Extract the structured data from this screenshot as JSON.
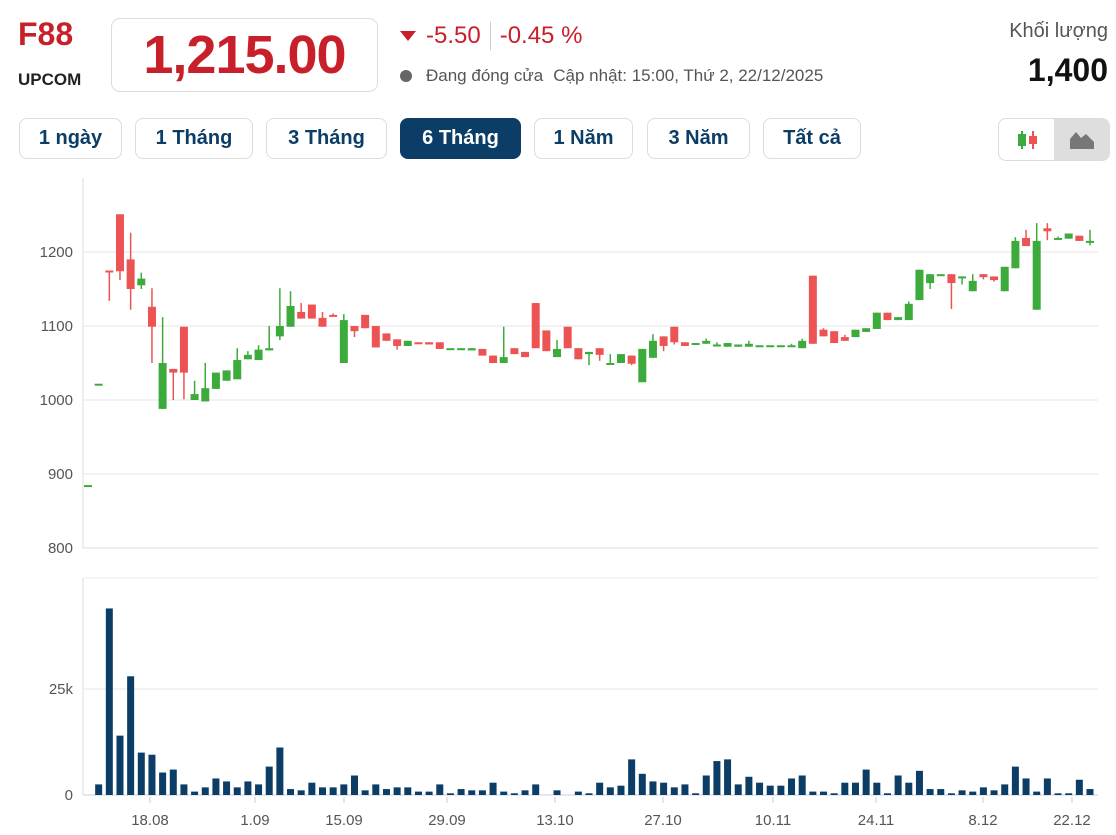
{
  "header": {
    "ticker": "F88",
    "exchange": "UPCOM",
    "price": "1,215.00",
    "change": "-5.50",
    "change_pct": "-0.45 %",
    "status": "Đang đóng cửa",
    "updated": "Cập nhật: 15:00, Thứ 2, 22/12/2025",
    "volume_label": "Khối lượng",
    "volume_value": "1,400"
  },
  "ranges": [
    {
      "label": "1 ngày",
      "active": false
    },
    {
      "label": "1 Tháng",
      "active": false
    },
    {
      "label": "3 Tháng",
      "active": false
    },
    {
      "label": "6 Tháng",
      "active": true
    },
    {
      "label": "1 Năm",
      "active": false
    },
    {
      "label": "3 Năm",
      "active": false
    },
    {
      "label": "Tất cả",
      "active": false
    }
  ],
  "chart_toggle": {
    "options": [
      "candlestick-icon",
      "area-chart-icon"
    ],
    "selected": "area-chart-icon"
  },
  "colors": {
    "up": "#3cab3c",
    "down": "#ec5454",
    "volume": "#0b3d66",
    "accent": "#0b3d66",
    "price": "#c8202a"
  },
  "chart_data": {
    "type": "candlestick",
    "price_axis": {
      "ticks": [
        "1200",
        "1100",
        "1000",
        "900",
        "800"
      ],
      "range": [
        800,
        1260
      ]
    },
    "volume_axis": {
      "ticks": [
        "25k",
        "0"
      ],
      "range": [
        0,
        47000
      ]
    },
    "x_ticks": [
      "18.08",
      "1.09",
      "15.09",
      "29.09",
      "13.10",
      "27.10",
      "10.11",
      "24.11",
      "8.12",
      "22.12"
    ],
    "grid": true,
    "ohlc": [
      [
        885,
        885,
        885,
        885
      ],
      [
        1022,
        1022,
        1022,
        1022
      ],
      [
        1175,
        1175,
        1134,
        1174
      ],
      [
        1251,
        1251,
        1162,
        1174
      ],
      [
        1190,
        1226,
        1122,
        1150
      ],
      [
        1155,
        1172,
        1150,
        1164
      ],
      [
        1126,
        1151,
        1050,
        1099
      ],
      [
        988,
        1112,
        988,
        1050
      ],
      [
        1042,
        1042,
        1000,
        1037
      ],
      [
        1099,
        1099,
        1001,
        1037
      ],
      [
        1000,
        1026,
        1000,
        1008
      ],
      [
        998,
        1050,
        998,
        1016
      ],
      [
        1015,
        1037,
        1015,
        1037
      ],
      [
        1026,
        1040,
        1026,
        1040
      ],
      [
        1028,
        1070,
        1028,
        1054
      ],
      [
        1055,
        1066,
        1055,
        1061
      ],
      [
        1054,
        1074,
        1054,
        1068
      ],
      [
        1067,
        1100,
        1067,
        1070
      ],
      [
        1086,
        1151,
        1081,
        1100
      ],
      [
        1099,
        1147,
        1099,
        1127
      ],
      [
        1119,
        1131,
        1110,
        1110
      ],
      [
        1129,
        1129,
        1110,
        1110
      ],
      [
        1111,
        1119,
        1099,
        1099
      ],
      [
        1115,
        1117,
        1113,
        1114
      ],
      [
        1050,
        1116,
        1050,
        1108
      ],
      [
        1100,
        1100,
        1085,
        1093
      ],
      [
        1115,
        1115,
        1097,
        1097
      ],
      [
        1100,
        1100,
        1071,
        1071
      ],
      [
        1090,
        1090,
        1080,
        1080
      ],
      [
        1082,
        1082,
        1068,
        1073
      ],
      [
        1073,
        1080,
        1073,
        1080
      ],
      [
        1078,
        1078,
        1077,
        1077
      ],
      [
        1078,
        1078,
        1075,
        1075
      ],
      [
        1078,
        1078,
        1069,
        1069
      ],
      [
        1070,
        1070,
        1070,
        1070
      ],
      [
        1070,
        1070,
        1068,
        1070
      ],
      [
        1067,
        1070,
        1067,
        1070
      ],
      [
        1069,
        1069,
        1060,
        1060
      ],
      [
        1060,
        1060,
        1050,
        1050
      ],
      [
        1050,
        1099,
        1050,
        1058
      ],
      [
        1070,
        1070,
        1062,
        1062
      ],
      [
        1065,
        1065,
        1058,
        1058
      ],
      [
        1131,
        1131,
        1070,
        1070
      ],
      [
        1094,
        1094,
        1066,
        1066
      ],
      [
        1058,
        1081,
        1058,
        1069
      ],
      [
        1099,
        1099,
        1070,
        1070
      ],
      [
        1070,
        1070,
        1055,
        1055
      ],
      [
        1062,
        1065,
        1047,
        1065
      ],
      [
        1070,
        1070,
        1053,
        1061
      ],
      [
        1050,
        1062,
        1050,
        1050
      ],
      [
        1050,
        1062,
        1050,
        1062
      ],
      [
        1060,
        1060,
        1047,
        1049
      ],
      [
        1024,
        1069,
        1024,
        1069
      ],
      [
        1057,
        1089,
        1057,
        1080
      ],
      [
        1086,
        1086,
        1066,
        1073
      ],
      [
        1099,
        1099,
        1075,
        1078
      ],
      [
        1078,
        1078,
        1073,
        1073
      ],
      [
        1077,
        1077,
        1076,
        1077
      ],
      [
        1076,
        1083,
        1076,
        1080
      ],
      [
        1075,
        1078,
        1075,
        1075
      ],
      [
        1072,
        1077,
        1072,
        1077
      ],
      [
        1072,
        1075,
        1072,
        1075
      ],
      [
        1072,
        1080,
        1072,
        1076
      ],
      [
        1074,
        1074,
        1074,
        1074
      ],
      [
        1074,
        1074,
        1074,
        1074
      ],
      [
        1074,
        1074,
        1074,
        1074
      ],
      [
        1074,
        1076,
        1074,
        1074
      ],
      [
        1070,
        1083,
        1070,
        1080
      ],
      [
        1168,
        1168,
        1076,
        1076
      ],
      [
        1095,
        1097,
        1086,
        1086
      ],
      [
        1093,
        1093,
        1077,
        1077
      ],
      [
        1085,
        1088,
        1080,
        1080
      ],
      [
        1085,
        1095,
        1085,
        1095
      ],
      [
        1092,
        1097,
        1092,
        1097
      ],
      [
        1096,
        1118,
        1096,
        1118
      ],
      [
        1118,
        1118,
        1108,
        1108
      ],
      [
        1108,
        1112,
        1108,
        1112
      ],
      [
        1108,
        1133,
        1108,
        1130
      ],
      [
        1135,
        1176,
        1135,
        1176
      ],
      [
        1158,
        1170,
        1150,
        1170
      ],
      [
        1170,
        1170,
        1170,
        1170
      ],
      [
        1170,
        1170,
        1123,
        1158
      ],
      [
        1165,
        1167,
        1156,
        1167
      ],
      [
        1147,
        1170,
        1147,
        1161
      ],
      [
        1170,
        1170,
        1163,
        1166
      ],
      [
        1167,
        1167,
        1160,
        1162
      ],
      [
        1147,
        1180,
        1147,
        1180
      ],
      [
        1178,
        1220,
        1178,
        1215
      ],
      [
        1219,
        1230,
        1208,
        1208
      ],
      [
        1122,
        1239,
        1122,
        1215
      ],
      [
        1232,
        1239,
        1216,
        1228
      ],
      [
        1219,
        1221,
        1219,
        1219
      ],
      [
        1218,
        1225,
        1218,
        1225
      ],
      [
        1222,
        1222,
        1215,
        1215
      ],
      [
        1215,
        1230,
        1209,
        1215
      ]
    ],
    "volume": [
      0,
      2500,
      44000,
      14000,
      28000,
      10000,
      9500,
      5300,
      6000,
      2500,
      800,
      1800,
      3900,
      3200,
      1800,
      3200,
      2500,
      6700,
      11200,
      1400,
      1100,
      2900,
      1800,
      1800,
      2500,
      4600,
      1100,
      2500,
      1400,
      1800,
      1800,
      800,
      800,
      2500,
      400,
      1400,
      1100,
      1100,
      2900,
      800,
      400,
      1100,
      2500,
      0,
      1100,
      0,
      800,
      400,
      2900,
      1800,
      2200,
      8400,
      5000,
      3200,
      2900,
      1800,
      2500,
      400,
      4600,
      8000,
      8400,
      2500,
      4300,
      2900,
      2200,
      2200,
      3900,
      4600,
      800,
      800,
      400,
      2900,
      2900,
      6000,
      2900,
      400,
      4600,
      2900,
      5700,
      1400,
      1400,
      400,
      1100,
      800,
      1800,
      1100,
      2500,
      6700,
      3900,
      800,
      3900,
      400,
      400,
      3600,
      1400
    ]
  }
}
